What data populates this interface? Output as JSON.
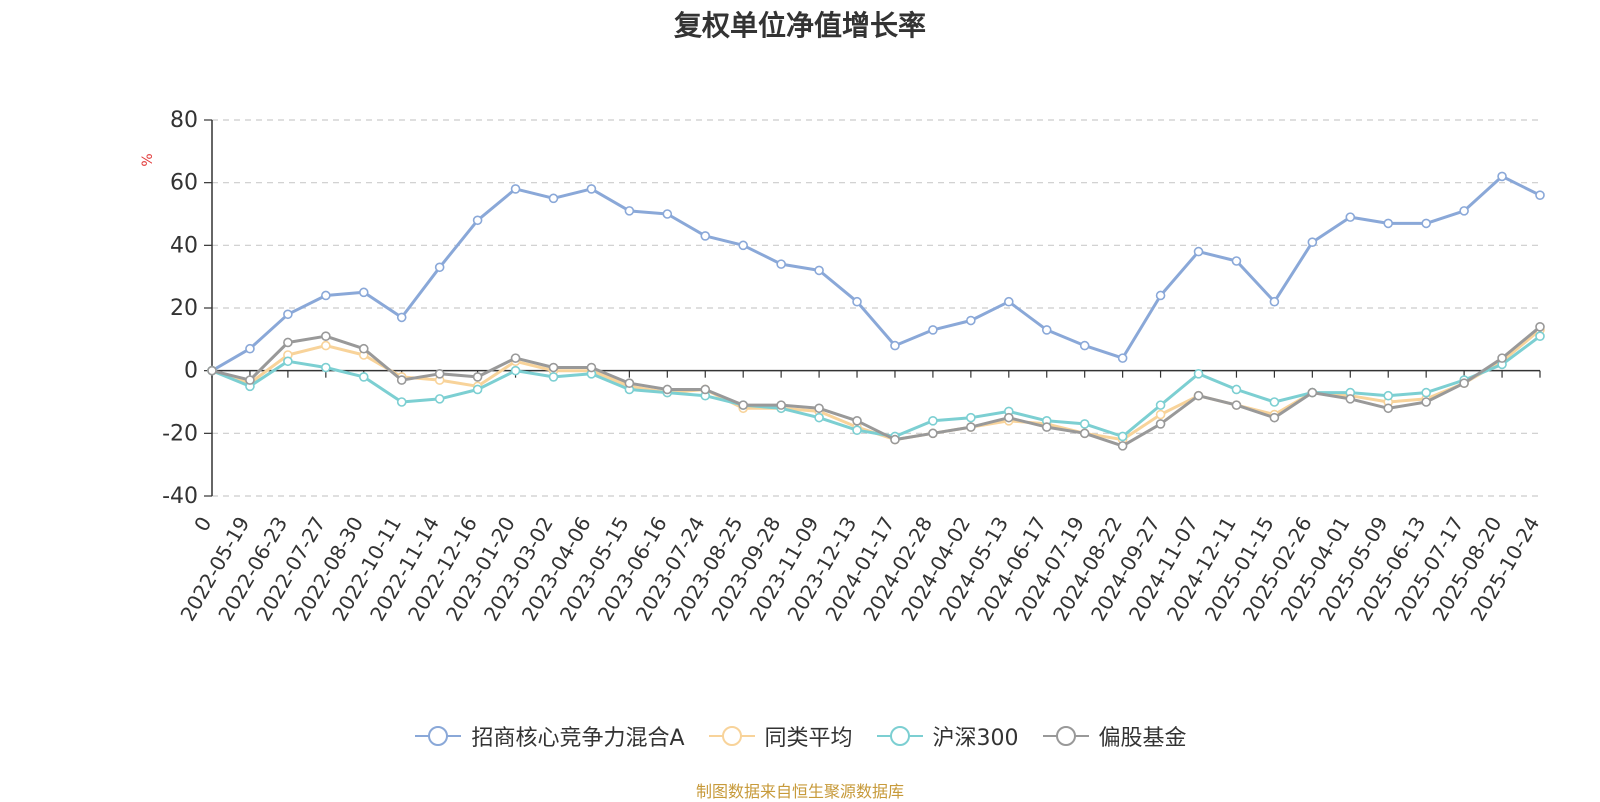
{
  "chart_data": {
    "type": "line",
    "title": "复权单位净值增长率",
    "ylabel": "%",
    "ylim": [
      -40,
      80
    ],
    "yticks": [
      80,
      60,
      40,
      20,
      0,
      -20,
      -40
    ],
    "grid": true,
    "legend_position": "bottom",
    "x_tick_labels": [
      "0",
      "2022-05-19",
      "2022-06-23",
      "2022-07-27",
      "2022-08-30",
      "2022-10-11",
      "2022-11-14",
      "2022-12-16",
      "2023-01-20",
      "2023-03-02",
      "2023-04-06",
      "2023-05-15",
      "2023-06-16",
      "2023-07-24",
      "2023-08-25",
      "2023-09-28",
      "2023-11-09",
      "2023-12-13",
      "2024-01-17",
      "2024-02-28",
      "2024-04-02",
      "2024-05-13",
      "2024-06-17",
      "2024-07-19",
      "2024-08-22",
      "2024-09-27",
      "2024-11-07",
      "2024-12-11",
      "2025-01-15",
      "2025-02-26",
      "2025-04-01",
      "2025-05-09",
      "2025-06-13",
      "2025-07-17",
      "2025-08-20",
      "2025-10-24"
    ],
    "series": [
      {
        "name": "招商核心竞争力混合A",
        "color": "#8aa8d8",
        "values": [
          0,
          7,
          18,
          24,
          25,
          17,
          33,
          48,
          58,
          55,
          58,
          51,
          50,
          43,
          40,
          34,
          32,
          22,
          8,
          13,
          16,
          22,
          13,
          8,
          4,
          24,
          38,
          35,
          22,
          41,
          49,
          47,
          47,
          51,
          62,
          56
        ]
      },
      {
        "name": "同类平均",
        "color": "#f8d39a",
        "values": [
          0,
          -4,
          5,
          8,
          5,
          -2,
          -3,
          -5,
          3,
          0,
          0,
          -5,
          -7,
          -6,
          -12,
          -12,
          -13,
          -18,
          -22,
          -20,
          -18,
          -16,
          -17,
          -20,
          -22,
          -14,
          -8,
          -11,
          -14,
          -7,
          -8,
          -10,
          -9,
          -4,
          3,
          13
        ]
      },
      {
        "name": "沪深300",
        "color": "#7ccfd2",
        "values": [
          0,
          -5,
          3,
          1,
          -2,
          -10,
          -9,
          -6,
          0,
          -2,
          -1,
          -6,
          -7,
          -8,
          -11,
          -12,
          -15,
          -19,
          -21,
          -16,
          -15,
          -13,
          -16,
          -17,
          -21,
          -11,
          -1,
          -6,
          -10,
          -7,
          -7,
          -8,
          -7,
          -3,
          2,
          11
        ]
      },
      {
        "name": "偏股基金",
        "color": "#999999",
        "values": [
          0,
          -3,
          9,
          11,
          7,
          -3,
          -1,
          -2,
          4,
          1,
          1,
          -4,
          -6,
          -6,
          -11,
          -11,
          -12,
          -16,
          -22,
          -20,
          -18,
          -15,
          -18,
          -20,
          -24,
          -17,
          -8,
          -11,
          -15,
          -7,
          -9,
          -12,
          -10,
          -4,
          4,
          14
        ]
      }
    ]
  },
  "source_note": "制图数据来自恒生聚源数据库"
}
